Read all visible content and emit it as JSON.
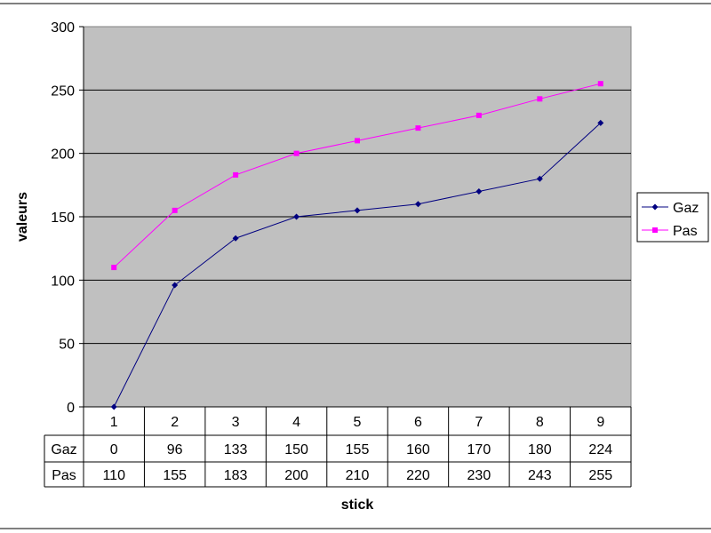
{
  "chart_data": {
    "type": "line",
    "title": "",
    "xlabel": "stick",
    "ylabel": "valeurs",
    "ylim": [
      0,
      300
    ],
    "yticks": [
      0,
      50,
      100,
      150,
      200,
      250,
      300
    ],
    "categories": [
      "1",
      "2",
      "3",
      "4",
      "5",
      "6",
      "7",
      "8",
      "9"
    ],
    "grid": true,
    "legend_position": "right",
    "data_table": true,
    "series": [
      {
        "name": "Gaz",
        "values": [
          0,
          96,
          133,
          150,
          155,
          160,
          170,
          180,
          224
        ],
        "color": "#000080",
        "marker": "diamond"
      },
      {
        "name": "Pas",
        "values": [
          110,
          155,
          183,
          200,
          210,
          220,
          230,
          243,
          255
        ],
        "color": "#FF00FF",
        "marker": "square"
      }
    ],
    "plot_background": "#C0C0C0"
  }
}
